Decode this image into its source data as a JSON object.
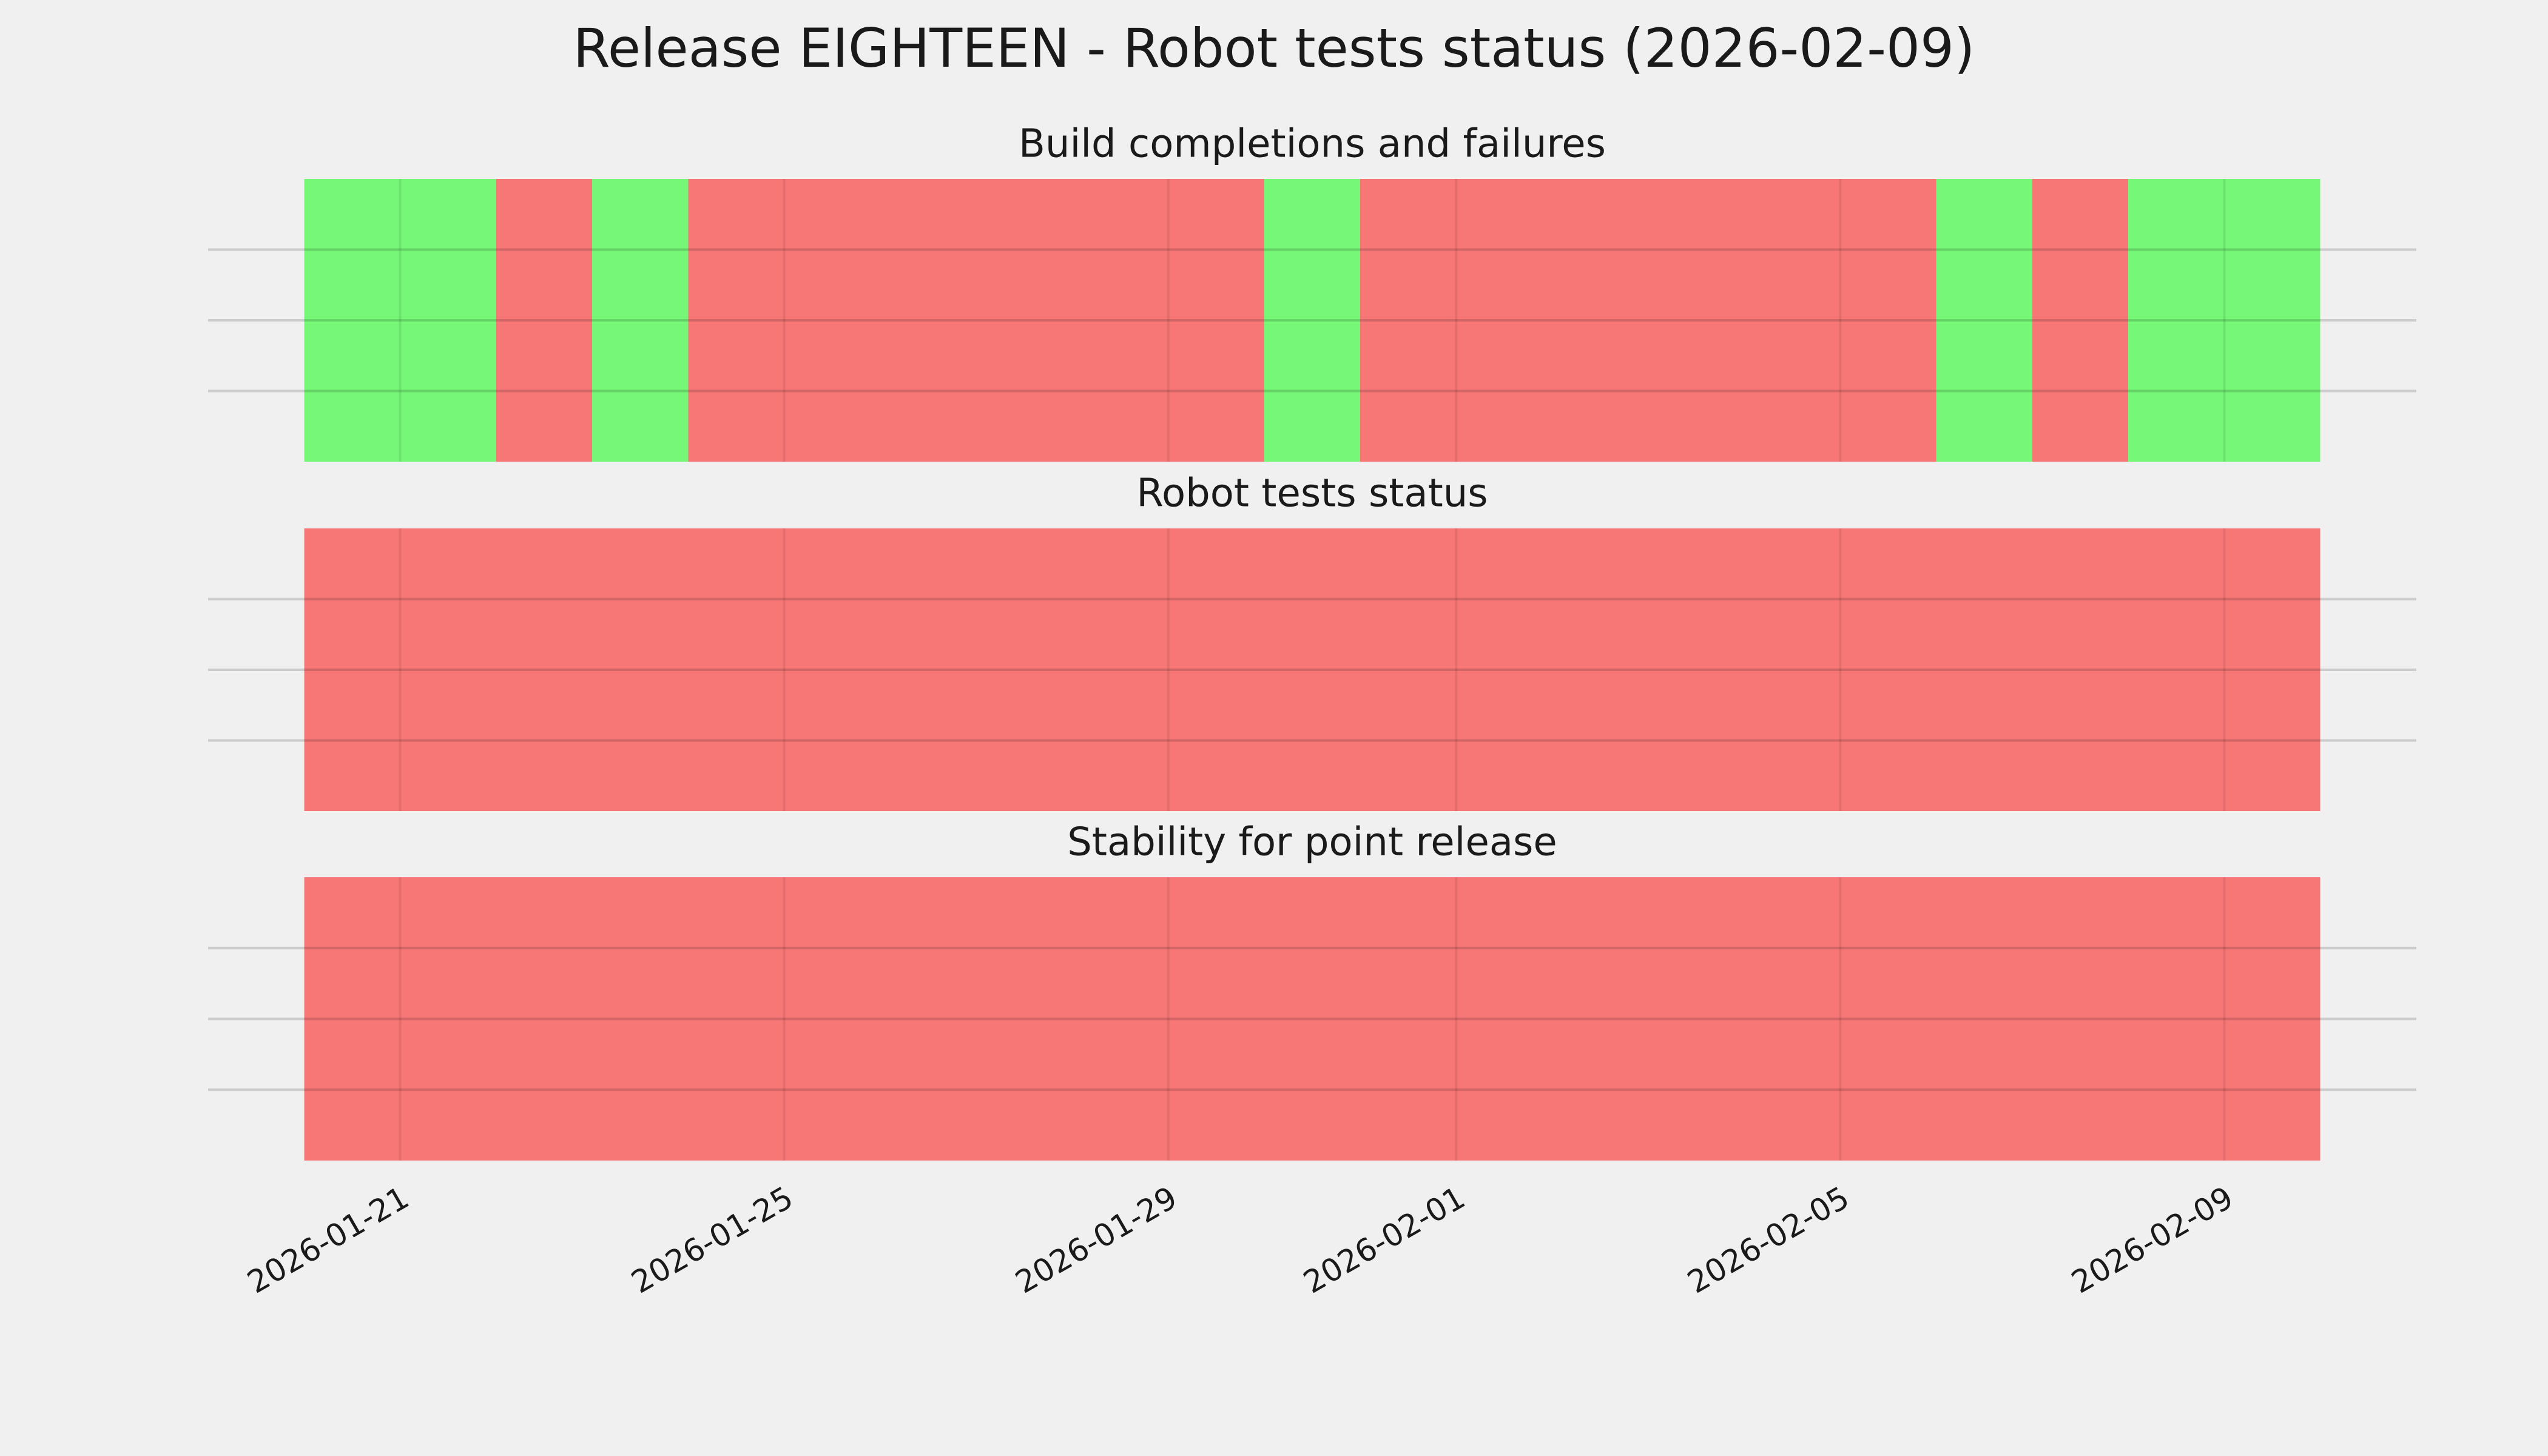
{
  "title": "Release EIGHTEEN - Robot tests status (2026-02-09)",
  "chart_data": [
    {
      "type": "timeline",
      "title": "Build completions and failures",
      "x_edges": [
        "2026-01-20",
        "2026-01-21",
        "2026-01-22",
        "2026-01-23",
        "2026-01-24",
        "2026-01-25",
        "2026-01-26",
        "2026-01-27",
        "2026-01-28",
        "2026-01-29",
        "2026-01-30",
        "2026-01-31",
        "2026-02-01",
        "2026-02-02",
        "2026-02-03",
        "2026-02-04",
        "2026-02-05",
        "2026-02-06",
        "2026-02-07",
        "2026-02-08",
        "2026-02-09",
        "2026-02-10"
      ],
      "colors": [
        "#77f777",
        "#77f777",
        "#f77777",
        "#77f777",
        "#f77777",
        "#f77777",
        "#f77777",
        "#f77777",
        "#f77777",
        "#f77777",
        "#77f777",
        "#f77777",
        "#f77777",
        "#f77777",
        "#f77777",
        "#f77777",
        "#f77777",
        "#77f777",
        "#f77777",
        "#77f777",
        "#77f777"
      ],
      "xlim": [
        "2026-01-19",
        "2026-02-11"
      ],
      "ylim": [
        0,
        1
      ],
      "yticks": [
        0.25,
        0.5,
        0.75
      ],
      "xticks": [
        "2026-01-21",
        "2026-01-25",
        "2026-01-29",
        "2026-02-01",
        "2026-02-05",
        "2026-02-09"
      ],
      "grid": true
    },
    {
      "type": "timeline",
      "title": "Robot tests status",
      "x_edges": [
        "2026-01-20",
        "2026-01-21",
        "2026-01-22",
        "2026-01-23",
        "2026-01-24",
        "2026-01-25",
        "2026-01-26",
        "2026-01-27",
        "2026-01-28",
        "2026-01-29",
        "2026-01-30",
        "2026-01-31",
        "2026-02-01",
        "2026-02-02",
        "2026-02-03",
        "2026-02-04",
        "2026-02-05",
        "2026-02-06",
        "2026-02-07",
        "2026-02-08",
        "2026-02-09",
        "2026-02-10"
      ],
      "colors": [
        "#f77777",
        "#f77777",
        "#f77777",
        "#f77777",
        "#f77777",
        "#f77777",
        "#f77777",
        "#f77777",
        "#f77777",
        "#f77777",
        "#f77777",
        "#f77777",
        "#f77777",
        "#f77777",
        "#f77777",
        "#f77777",
        "#f77777",
        "#f77777",
        "#f77777",
        "#f77777",
        "#f77777"
      ],
      "xlim": [
        "2026-01-19",
        "2026-02-11"
      ],
      "ylim": [
        0,
        1
      ],
      "yticks": [
        0.25,
        0.5,
        0.75
      ],
      "xticks": [
        "2026-01-21",
        "2026-01-25",
        "2026-01-29",
        "2026-02-01",
        "2026-02-05",
        "2026-02-09"
      ],
      "grid": true
    },
    {
      "type": "timeline",
      "title": "Stability for point release",
      "x_edges": [
        "2026-01-20",
        "2026-01-21",
        "2026-01-22",
        "2026-01-23",
        "2026-01-24",
        "2026-01-25",
        "2026-01-26",
        "2026-01-27",
        "2026-01-28",
        "2026-01-29",
        "2026-01-30",
        "2026-01-31",
        "2026-02-01",
        "2026-02-02",
        "2026-02-03",
        "2026-02-04",
        "2026-02-05",
        "2026-02-06",
        "2026-02-07",
        "2026-02-08",
        "2026-02-09",
        "2026-02-10"
      ],
      "colors": [
        "#f77777",
        "#f77777",
        "#f77777",
        "#f77777",
        "#f77777",
        "#f77777",
        "#f77777",
        "#f77777",
        "#f77777",
        "#f77777",
        "#f77777",
        "#f77777",
        "#f77777",
        "#f77777",
        "#f77777",
        "#f77777",
        "#f77777",
        "#f77777",
        "#f77777",
        "#f77777",
        "#f77777"
      ],
      "xlim": [
        "2026-01-19",
        "2026-02-11"
      ],
      "ylim": [
        0,
        1
      ],
      "yticks": [
        0.25,
        0.5,
        0.75
      ],
      "xticks": [
        "2026-01-21",
        "2026-01-25",
        "2026-01-29",
        "2026-02-01",
        "2026-02-05",
        "2026-02-09"
      ],
      "grid": true
    }
  ]
}
